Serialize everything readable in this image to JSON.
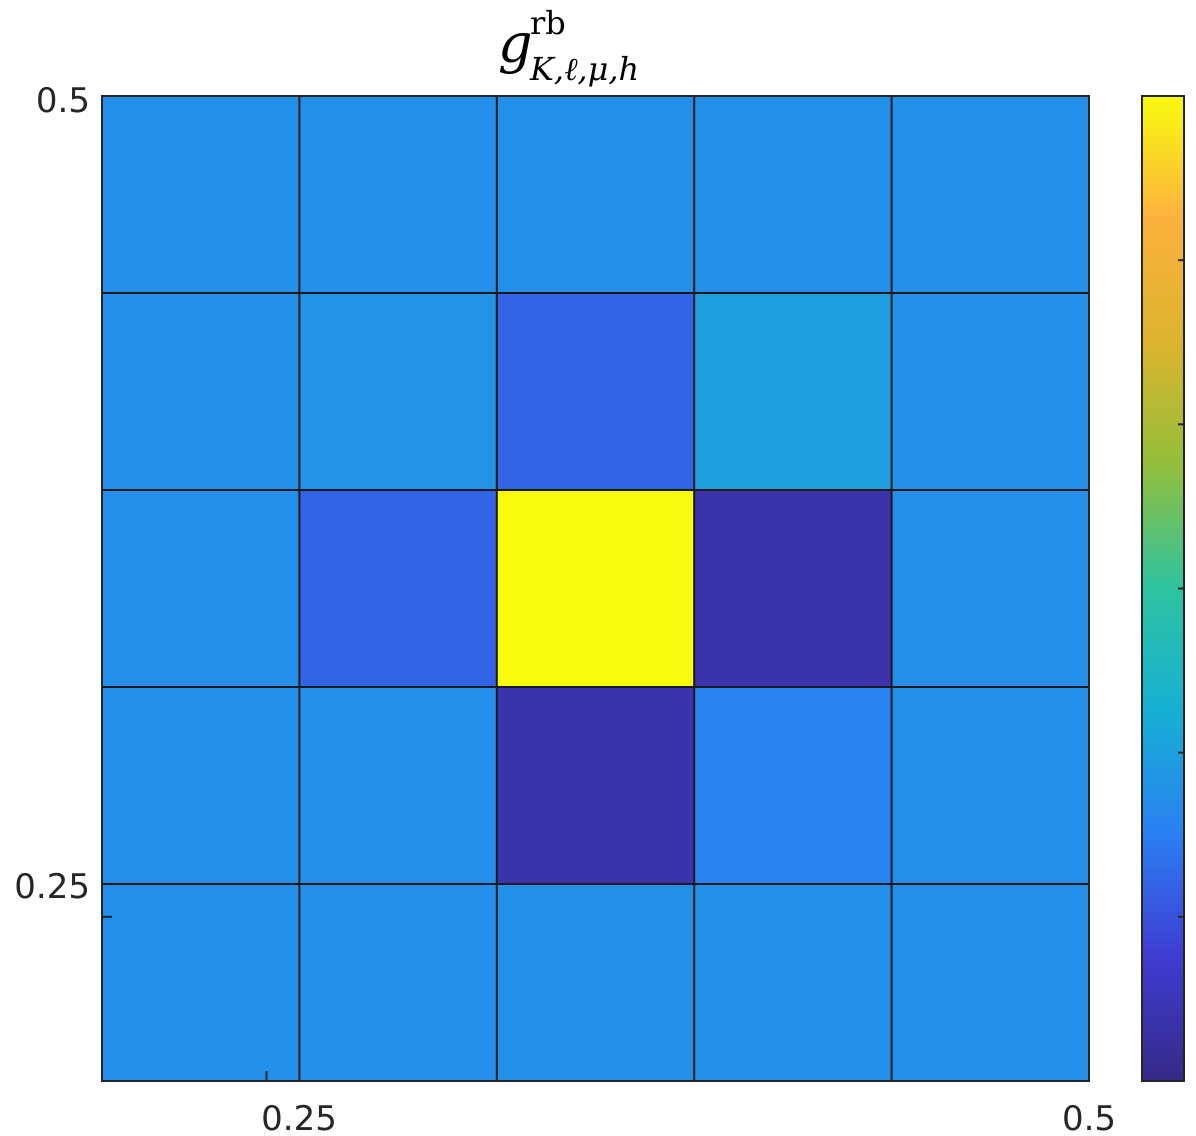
{
  "chart_data": {
    "type": "heatmap",
    "title": {
      "main": "g",
      "superscript": "rb",
      "subscript": "K,ℓ,μ,h"
    },
    "x_tick_labels": [
      "0.25",
      "0.5"
    ],
    "y_tick_labels": [
      "0.5",
      "0.25"
    ],
    "x_tick_values": [
      0.25,
      0.5
    ],
    "y_tick_values": [
      0.5,
      0.25
    ],
    "xlim": [
      0.2,
      0.5
    ],
    "ylim": [
      0.2,
      0.5
    ],
    "grid": {
      "rows": 5,
      "cols": 5
    },
    "colorbar": {
      "position": "right",
      "colormap": "parula",
      "stops": [
        "#352a87",
        "#3f3cd1",
        "#2b7ff2",
        "#16b0d4",
        "#2ec3a0",
        "#92bf3c",
        "#dcb42d",
        "#fcb13e",
        "#f9fb0e"
      ],
      "tick_count": 5,
      "value_range": [
        0,
        1
      ]
    },
    "values": [
      [
        0.29,
        0.29,
        0.29,
        0.29,
        0.29
      ],
      [
        0.29,
        0.3,
        0.2,
        0.33,
        0.29
      ],
      [
        0.29,
        0.2,
        1.0,
        0.06,
        0.29
      ],
      [
        0.29,
        0.29,
        0.06,
        0.26,
        0.29
      ],
      [
        0.29,
        0.29,
        0.29,
        0.29,
        0.29
      ]
    ]
  }
}
